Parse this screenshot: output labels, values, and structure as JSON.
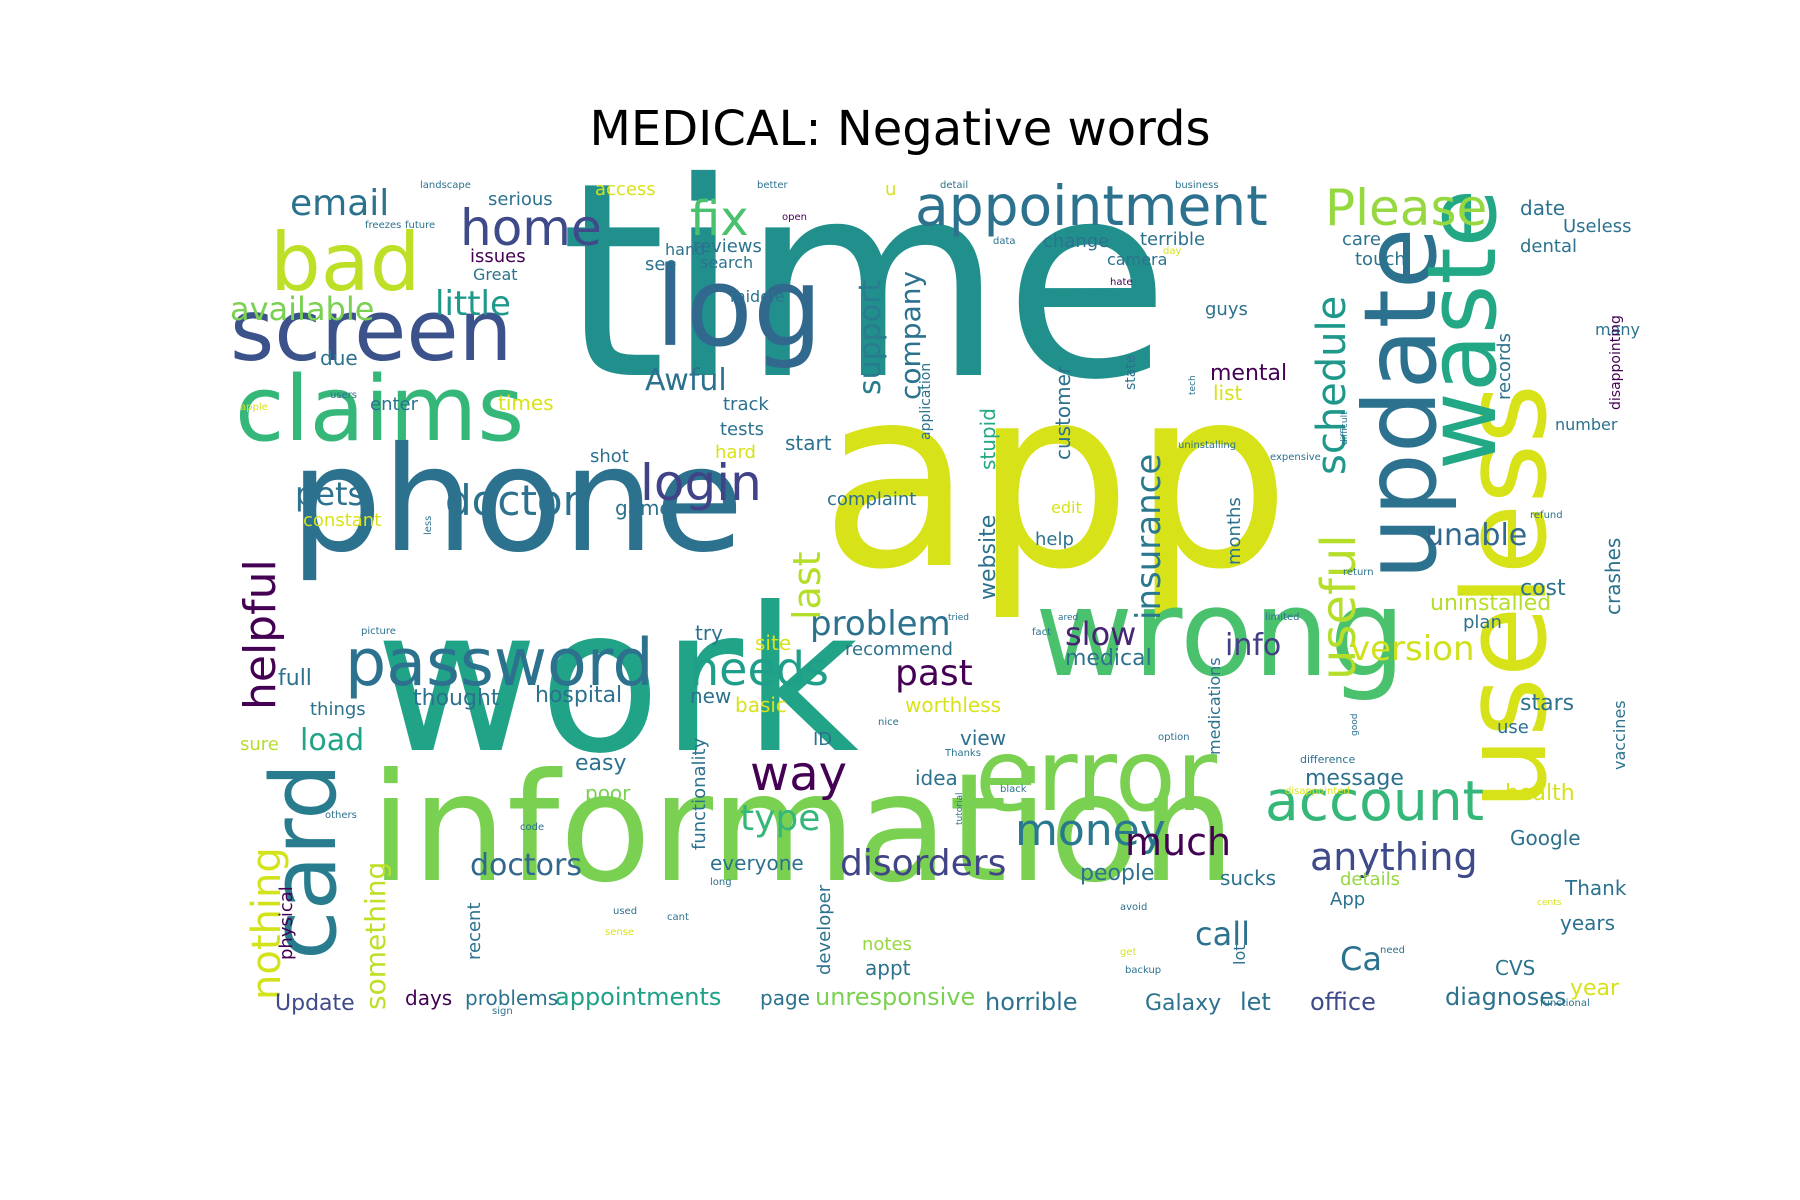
{
  "chart_data": {
    "type": "wordcloud",
    "title": "MEDICAL: Negative words",
    "palette": "viridis",
    "words": [
      {
        "text": "time",
        "weight": 100,
        "color": "#21908d"
      },
      {
        "text": "app",
        "weight": 95,
        "color": "#d8e219"
      },
      {
        "text": "work",
        "weight": 92,
        "color": "#20a386"
      },
      {
        "text": "information",
        "weight": 80,
        "color": "#7ad151"
      },
      {
        "text": "phone",
        "weight": 72,
        "color": "#2c728e"
      },
      {
        "text": "useless",
        "weight": 62,
        "color": "#d8e219"
      },
      {
        "text": "wrong",
        "weight": 56,
        "color": "#4ac16d"
      },
      {
        "text": "update",
        "weight": 54,
        "color": "#2c728e"
      },
      {
        "text": "waste",
        "weight": 50,
        "color": "#22a884"
      },
      {
        "text": "claims",
        "weight": 42,
        "color": "#35b779"
      },
      {
        "text": "screen",
        "weight": 42,
        "color": "#3b528b"
      },
      {
        "text": "log",
        "weight": 42,
        "color": "#31688e"
      },
      {
        "text": "error",
        "weight": 38,
        "color": "#7ad151"
      },
      {
        "text": "card",
        "weight": 36,
        "color": "#287c8e"
      },
      {
        "text": "password",
        "weight": 33,
        "color": "#2c728e"
      },
      {
        "text": "bad",
        "weight": 36,
        "color": "#bddf26"
      },
      {
        "text": "appointment",
        "weight": 28,
        "color": "#2c728e"
      },
      {
        "text": "login",
        "weight": 26,
        "color": "#404387"
      },
      {
        "text": "account",
        "weight": 26,
        "color": "#35b779"
      },
      {
        "text": "useful",
        "weight": 24,
        "color": "#b5de2b"
      },
      {
        "text": "Please",
        "weight": 24,
        "color": "#95d840"
      },
      {
        "text": "way",
        "weight": 24,
        "color": "#440154"
      },
      {
        "text": "fix",
        "weight": 24,
        "color": "#4ac16d"
      },
      {
        "text": "needs",
        "weight": 24,
        "color": "#1f9e89"
      },
      {
        "text": "home",
        "weight": 24,
        "color": "#3e4a89"
      },
      {
        "text": "money",
        "weight": 22,
        "color": "#2a788e"
      },
      {
        "text": "helpful",
        "weight": 22,
        "color": "#440154"
      },
      {
        "text": "nothing",
        "weight": 20,
        "color": "#d2e21b"
      },
      {
        "text": "doctor",
        "weight": 20,
        "color": "#2c728e"
      },
      {
        "text": "schedule",
        "weight": 18,
        "color": "#1f988b"
      },
      {
        "text": "insurance",
        "weight": 16,
        "color": "#2a788e"
      },
      {
        "text": "anything",
        "weight": 18,
        "color": "#3e4a89"
      },
      {
        "text": "much",
        "weight": 18,
        "color": "#440154"
      },
      {
        "text": "disorders",
        "weight": 18,
        "color": "#414487"
      },
      {
        "text": "problem",
        "weight": 16,
        "color": "#2c728e"
      },
      {
        "text": "slow",
        "weight": 16,
        "color": "#482475"
      },
      {
        "text": "type",
        "weight": 16,
        "color": "#35b779"
      },
      {
        "text": "last",
        "weight": 16,
        "color": "#b5de2b"
      },
      {
        "text": "version",
        "weight": 16,
        "color": "#d0e11c"
      },
      {
        "text": "email",
        "weight": 16,
        "color": "#2c728e"
      },
      {
        "text": "little",
        "weight": 16,
        "color": "#1f988b"
      },
      {
        "text": "available",
        "weight": 16,
        "color": "#7ad151"
      },
      {
        "text": "pets",
        "weight": 14,
        "color": "#2c728e"
      },
      {
        "text": "Awful",
        "weight": 14,
        "color": "#2c728e"
      },
      {
        "text": "support",
        "weight": 14,
        "color": "#287c8e"
      },
      {
        "text": "company",
        "weight": 14,
        "color": "#2c728e"
      },
      {
        "text": "past",
        "weight": 14,
        "color": "#440154"
      },
      {
        "text": "unable",
        "weight": 14,
        "color": "#31688e"
      },
      {
        "text": "info",
        "weight": 14,
        "color": "#433e85"
      },
      {
        "text": "load",
        "weight": 14,
        "color": "#20a386"
      },
      {
        "text": "doctors",
        "weight": 14,
        "color": "#31688e"
      },
      {
        "text": "something",
        "weight": 12,
        "color": "#bddf26"
      },
      {
        "text": "call",
        "weight": 14,
        "color": "#2c728e"
      },
      {
        "text": "Ca",
        "weight": 14,
        "color": "#2c728e"
      },
      {
        "text": "website",
        "weight": 10,
        "color": "#2c728e"
      },
      {
        "text": "stupid",
        "weight": 9,
        "color": "#22a884"
      },
      {
        "text": "customer",
        "weight": 9,
        "color": "#2c728e"
      },
      {
        "text": "uninstalled",
        "weight": 10,
        "color": "#b5de2b"
      },
      {
        "text": "cost",
        "weight": 10,
        "color": "#2c728e"
      },
      {
        "text": "crashes",
        "weight": 9,
        "color": "#2c728e"
      },
      {
        "text": "records",
        "weight": 8,
        "color": "#2c728e"
      },
      {
        "text": "mental",
        "weight": 10,
        "color": "#440154"
      },
      {
        "text": "medical",
        "weight": 9,
        "color": "#2c728e"
      },
      {
        "text": "months",
        "weight": 8,
        "color": "#2c728e"
      },
      {
        "text": "appointments",
        "weight": 10,
        "color": "#1fa187"
      },
      {
        "text": "unresponsive",
        "weight": 9,
        "color": "#7ad151"
      },
      {
        "text": "horrible",
        "weight": 9,
        "color": "#2c728e"
      },
      {
        "text": "office",
        "weight": 9,
        "color": "#3e4a89"
      },
      {
        "text": "diagnoses",
        "weight": 9,
        "color": "#2c728e"
      },
      {
        "text": "Galaxy",
        "weight": 8,
        "color": "#2c728e"
      },
      {
        "text": "let",
        "weight": 9,
        "color": "#2c728e"
      },
      {
        "text": "Update",
        "weight": 8,
        "color": "#3e4a89"
      },
      {
        "text": "days",
        "weight": 8,
        "color": "#440154"
      },
      {
        "text": "problems",
        "weight": 8,
        "color": "#2c728e"
      },
      {
        "text": "page",
        "weight": 7,
        "color": "#2c728e"
      },
      {
        "text": "year",
        "weight": 8,
        "color": "#d8e219"
      },
      {
        "text": "CVS",
        "weight": 7,
        "color": "#2c728e"
      },
      {
        "text": "years",
        "weight": 7,
        "color": "#2c728e"
      },
      {
        "text": "Thank",
        "weight": 7,
        "color": "#2c728e"
      },
      {
        "text": "Google",
        "weight": 7,
        "color": "#2c728e"
      },
      {
        "text": "health",
        "weight": 8,
        "color": "#d8e219"
      },
      {
        "text": "message",
        "weight": 8,
        "color": "#2c728e"
      },
      {
        "text": "view",
        "weight": 8,
        "color": "#2c728e"
      },
      {
        "text": "idea",
        "weight": 7,
        "color": "#2c728e"
      },
      {
        "text": "easy",
        "weight": 8,
        "color": "#2c728e"
      },
      {
        "text": "poor",
        "weight": 7,
        "color": "#7ad151"
      },
      {
        "text": "everyone",
        "weight": 8,
        "color": "#2c728e"
      },
      {
        "text": "people",
        "weight": 8,
        "color": "#2c728e"
      },
      {
        "text": "details",
        "weight": 7,
        "color": "#95d840"
      },
      {
        "text": "sucks",
        "weight": 7,
        "color": "#2c728e"
      },
      {
        "text": "App",
        "weight": 7,
        "color": "#2c728e"
      },
      {
        "text": "lot",
        "weight": 6,
        "color": "#2c728e"
      },
      {
        "text": "notes",
        "weight": 7,
        "color": "#95d840"
      },
      {
        "text": "appt",
        "weight": 7,
        "color": "#2c728e"
      },
      {
        "text": "developer",
        "weight": 6,
        "color": "#2c728e"
      },
      {
        "text": "recent",
        "weight": 6,
        "color": "#2c728e"
      },
      {
        "text": "physical",
        "weight": 6,
        "color": "#440154"
      },
      {
        "text": "functionality",
        "weight": 7,
        "color": "#2c728e"
      },
      {
        "text": "worthless",
        "weight": 8,
        "color": "#d8e219"
      },
      {
        "text": "basic",
        "weight": 7,
        "color": "#d8e219"
      },
      {
        "text": "new",
        "weight": 7,
        "color": "#2c728e"
      },
      {
        "text": "hospital",
        "weight": 8,
        "color": "#2c728e"
      },
      {
        "text": "thought",
        "weight": 8,
        "color": "#2c728e"
      },
      {
        "text": "things",
        "weight": 7,
        "color": "#2c728e"
      },
      {
        "text": "full",
        "weight": 8,
        "color": "#2c728e"
      },
      {
        "text": "sure",
        "weight": 7,
        "color": "#b5de2b"
      },
      {
        "text": "try",
        "weight": 7,
        "color": "#2c728e"
      },
      {
        "text": "site",
        "weight": 7,
        "color": "#d8e219"
      },
      {
        "text": "recommend",
        "weight": 6,
        "color": "#2c728e"
      },
      {
        "text": "ID",
        "weight": 6,
        "color": "#2c728e"
      },
      {
        "text": "plan",
        "weight": 7,
        "color": "#2c728e"
      },
      {
        "text": "stars",
        "weight": 8,
        "color": "#2c728e"
      },
      {
        "text": "use",
        "weight": 7,
        "color": "#2c728e"
      },
      {
        "text": "vaccines",
        "weight": 6,
        "color": "#2c728e"
      },
      {
        "text": "medications",
        "weight": 6,
        "color": "#2c728e"
      },
      {
        "text": "help",
        "weight": 7,
        "color": "#2c728e"
      },
      {
        "text": "edit",
        "weight": 6,
        "color": "#d8e219"
      },
      {
        "text": "complaint",
        "weight": 7,
        "color": "#2c728e"
      },
      {
        "text": "game",
        "weight": 7,
        "color": "#2c728e"
      },
      {
        "text": "constant",
        "weight": 7,
        "color": "#d8e219"
      },
      {
        "text": "hard",
        "weight": 7,
        "color": "#d8e219"
      },
      {
        "text": "shot",
        "weight": 7,
        "color": "#2c728e"
      },
      {
        "text": "start",
        "weight": 7,
        "color": "#2c728e"
      },
      {
        "text": "tests",
        "weight": 7,
        "color": "#2c728e"
      },
      {
        "text": "track",
        "weight": 7,
        "color": "#2c728e"
      },
      {
        "text": "times",
        "weight": 7,
        "color": "#d8e219"
      },
      {
        "text": "enter",
        "weight": 6,
        "color": "#2c728e"
      },
      {
        "text": "due",
        "weight": 7,
        "color": "#2c728e"
      },
      {
        "text": "middle",
        "weight": 6,
        "color": "#2c728e"
      },
      {
        "text": "search",
        "weight": 6,
        "color": "#2c728e"
      },
      {
        "text": "reviews",
        "weight": 7,
        "color": "#2c728e"
      },
      {
        "text": "issues",
        "weight": 7,
        "color": "#440154"
      },
      {
        "text": "Great",
        "weight": 6,
        "color": "#2c728e"
      },
      {
        "text": "see",
        "weight": 7,
        "color": "#2c728e"
      },
      {
        "text": "hand",
        "weight": 6,
        "color": "#2c728e"
      },
      {
        "text": "access",
        "weight": 7,
        "color": "#d8e219"
      },
      {
        "text": "serious",
        "weight": 7,
        "color": "#2c728e"
      },
      {
        "text": "change",
        "weight": 7,
        "color": "#2c728e"
      },
      {
        "text": "terrible",
        "weight": 7,
        "color": "#2c728e"
      },
      {
        "text": "camera",
        "weight": 6,
        "color": "#2c728e"
      },
      {
        "text": "care",
        "weight": 7,
        "color": "#2c728e"
      },
      {
        "text": "touch",
        "weight": 6,
        "color": "#2c728e"
      },
      {
        "text": "date",
        "weight": 7,
        "color": "#2c728e"
      },
      {
        "text": "Useless",
        "weight": 7,
        "color": "#2c728e"
      },
      {
        "text": "dental",
        "weight": 7,
        "color": "#2c728e"
      },
      {
        "text": "guys",
        "weight": 6,
        "color": "#2c728e"
      },
      {
        "text": "list",
        "weight": 7,
        "color": "#d8e219"
      },
      {
        "text": "many",
        "weight": 6,
        "color": "#2c728e"
      },
      {
        "text": "number",
        "weight": 6,
        "color": "#2c728e"
      },
      {
        "text": "disappointing",
        "weight": 6,
        "color": "#440154"
      },
      {
        "text": "state",
        "weight": 5,
        "color": "#2c728e"
      },
      {
        "text": "application",
        "weight": 5,
        "color": "#2c728e"
      },
      {
        "text": "u",
        "weight": 6,
        "color": "#d8e219"
      },
      {
        "text": "hate",
        "weight": 4,
        "color": "#440154"
      },
      {
        "text": "landscape",
        "weight": 4,
        "color": "#2c728e"
      },
      {
        "text": "freezes",
        "weight": 4,
        "color": "#2c728e"
      },
      {
        "text": "future",
        "weight": 4,
        "color": "#2c728e"
      },
      {
        "text": "better",
        "weight": 4,
        "color": "#2c728e"
      },
      {
        "text": "open",
        "weight": 4,
        "color": "#440154"
      },
      {
        "text": "detail",
        "weight": 4,
        "color": "#2c728e"
      },
      {
        "text": "data",
        "weight": 4,
        "color": "#2c728e"
      },
      {
        "text": "day",
        "weight": 4,
        "color": "#d8e219"
      },
      {
        "text": "business",
        "weight": 4,
        "color": "#2c728e"
      },
      {
        "text": "apple",
        "weight": 4,
        "color": "#d8e219"
      },
      {
        "text": "users",
        "weight": 4,
        "color": "#2c728e"
      },
      {
        "text": "tech",
        "weight": 3,
        "color": "#2c728e"
      },
      {
        "text": "difficult",
        "weight": 3,
        "color": "#2c728e"
      },
      {
        "text": "uninstalling",
        "weight": 4,
        "color": "#2c728e"
      },
      {
        "text": "expensive",
        "weight": 4,
        "color": "#2c728e"
      },
      {
        "text": "refund",
        "weight": 4,
        "color": "#2c728e"
      },
      {
        "text": "return",
        "weight": 4,
        "color": "#2c728e"
      },
      {
        "text": "limited",
        "weight": 4,
        "color": "#2c728e"
      },
      {
        "text": "wow",
        "weight": 3,
        "color": "#d8e219"
      },
      {
        "text": "less",
        "weight": 4,
        "color": "#2c728e"
      },
      {
        "text": "picture",
        "weight": 4,
        "color": "#2c728e"
      },
      {
        "text": "fact",
        "weight": 4,
        "color": "#2c728e"
      },
      {
        "text": "ared",
        "weight": 3,
        "color": "#2c728e"
      },
      {
        "text": "tried",
        "weight": 3,
        "color": "#2c728e"
      },
      {
        "text": "nice",
        "weight": 4,
        "color": "#2c728e"
      },
      {
        "text": "Thanks",
        "weight": 4,
        "color": "#2c728e"
      },
      {
        "text": "option",
        "weight": 4,
        "color": "#2c728e"
      },
      {
        "text": "good",
        "weight": 4,
        "color": "#2c728e"
      },
      {
        "text": "difference",
        "weight": 4,
        "color": "#2c728e"
      },
      {
        "text": "disappointed",
        "weight": 4,
        "color": "#d8e219"
      },
      {
        "text": "black",
        "weight": 4,
        "color": "#2c728e"
      },
      {
        "text": "tutorial",
        "weight": 3,
        "color": "#2c728e"
      },
      {
        "text": "others",
        "weight": 4,
        "color": "#2c728e"
      },
      {
        "text": "code",
        "weight": 4,
        "color": "#2c728e"
      },
      {
        "text": "long",
        "weight": 4,
        "color": "#2c728e"
      },
      {
        "text": "avoid",
        "weight": 4,
        "color": "#2c728e"
      },
      {
        "text": "used",
        "weight": 4,
        "color": "#2c728e"
      },
      {
        "text": "cant",
        "weight": 4,
        "color": "#2c728e"
      },
      {
        "text": "sense",
        "weight": 4,
        "color": "#d8e219"
      },
      {
        "text": "get",
        "weight": 4,
        "color": "#d8e219"
      },
      {
        "text": "backup",
        "weight": 4,
        "color": "#2c728e"
      },
      {
        "text": "need",
        "weight": 4,
        "color": "#2c728e"
      },
      {
        "text": "sign",
        "weight": 4,
        "color": "#2c728e"
      },
      {
        "text": "functional",
        "weight": 4,
        "color": "#2c728e"
      },
      {
        "text": "cents",
        "weight": 3,
        "color": "#d8e219"
      }
    ]
  }
}
